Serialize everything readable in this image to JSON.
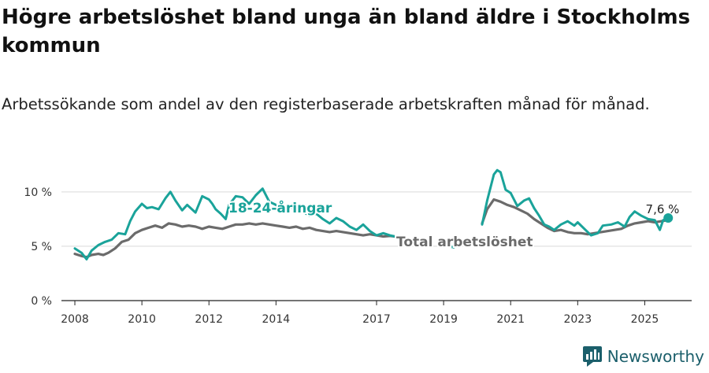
{
  "title": "Högre arbetslöshet bland unga än bland äldre i Stockholms kommun",
  "subtitle": "Arbetssökande som andel av den registerbaserade arbetskraften månad för månad.",
  "brand": {
    "name": "Newsworthy",
    "icon": "newsworthy-logo-icon"
  },
  "colors": {
    "youth": "#1aa39a",
    "total": "#6b6b6b",
    "grid": "#d9d9d9",
    "axis": "#222222"
  },
  "chart_data": {
    "type": "line",
    "xlim": [
      2007.6,
      2026.4
    ],
    "ylim": [
      0,
      11
    ],
    "y_ticks": [
      {
        "value": 0,
        "label": "0 %"
      },
      {
        "value": 5,
        "label": "5 %"
      },
      {
        "value": 10,
        "label": "10 %"
      }
    ],
    "x_ticks": [
      {
        "value": 2008,
        "label": "2008"
      },
      {
        "value": 2010,
        "label": "2010"
      },
      {
        "value": 2012,
        "label": "2012"
      },
      {
        "value": 2014,
        "label": "2014"
      },
      {
        "value": 2017,
        "label": "2017"
      },
      {
        "value": 2019,
        "label": "2019"
      },
      {
        "value": 2021,
        "label": "2021"
      },
      {
        "value": 2023,
        "label": "2023"
      },
      {
        "value": 2025,
        "label": "2025"
      }
    ],
    "grid": true,
    "series": [
      {
        "name": "18-24-åringar",
        "color": "#1aa39a",
        "segments": [
          [
            [
              2008.0,
              4.8
            ],
            [
              2008.2,
              4.4
            ],
            [
              2008.35,
              3.8
            ],
            [
              2008.5,
              4.6
            ],
            [
              2008.7,
              5.1
            ],
            [
              2008.9,
              5.4
            ],
            [
              2009.1,
              5.6
            ],
            [
              2009.3,
              6.2
            ],
            [
              2009.5,
              6.1
            ],
            [
              2009.65,
              7.3
            ],
            [
              2009.8,
              8.2
            ],
            [
              2010.0,
              8.9
            ],
            [
              2010.15,
              8.5
            ],
            [
              2010.3,
              8.6
            ],
            [
              2010.5,
              8.4
            ],
            [
              2010.7,
              9.4
            ],
            [
              2010.85,
              10.0
            ],
            [
              2011.0,
              9.2
            ],
            [
              2011.2,
              8.3
            ],
            [
              2011.35,
              8.8
            ],
            [
              2011.6,
              8.1
            ],
            [
              2011.8,
              9.6
            ],
            [
              2012.0,
              9.3
            ],
            [
              2012.1,
              8.9
            ],
            [
              2012.2,
              8.4
            ],
            [
              2012.35,
              8.0
            ],
            [
              2012.5,
              7.5
            ],
            [
              2012.6,
              8.8
            ],
            [
              2012.8,
              9.6
            ],
            [
              2013.0,
              9.5
            ],
            [
              2013.2,
              8.9
            ],
            [
              2013.4,
              9.7
            ],
            [
              2013.6,
              10.3
            ],
            [
              2013.8,
              9.1
            ],
            [
              2014.0,
              8.8
            ],
            [
              2014.2,
              8.2
            ],
            [
              2014.4,
              8.6
            ],
            [
              2014.7,
              8.4
            ],
            [
              2015.0,
              7.8
            ],
            [
              2015.2,
              8.0
            ],
            [
              2015.4,
              7.5
            ],
            [
              2015.6,
              7.1
            ],
            [
              2015.8,
              7.6
            ],
            [
              2016.0,
              7.3
            ],
            [
              2016.2,
              6.8
            ],
            [
              2016.4,
              6.5
            ],
            [
              2016.6,
              7.0
            ],
            [
              2016.8,
              6.4
            ],
            [
              2017.0,
              6.0
            ],
            [
              2017.2,
              6.2
            ],
            [
              2017.4,
              6.0
            ],
            [
              2017.55,
              5.9
            ]
          ],
          [
            [
              2019.15,
              5.0
            ],
            [
              2019.3,
              4.9
            ]
          ],
          [
            [
              2020.15,
              7.0
            ],
            [
              2020.3,
              9.2
            ],
            [
              2020.5,
              11.6
            ],
            [
              2020.6,
              12.0
            ],
            [
              2020.7,
              11.8
            ],
            [
              2020.85,
              10.2
            ],
            [
              2021.0,
              9.9
            ],
            [
              2021.2,
              8.7
            ],
            [
              2021.4,
              9.2
            ],
            [
              2021.55,
              9.4
            ],
            [
              2021.7,
              8.5
            ],
            [
              2021.85,
              7.8
            ],
            [
              2022.0,
              7.0
            ],
            [
              2022.15,
              6.8
            ],
            [
              2022.3,
              6.5
            ],
            [
              2022.5,
              7.0
            ],
            [
              2022.7,
              7.3
            ],
            [
              2022.9,
              6.9
            ],
            [
              2023.0,
              7.2
            ],
            [
              2023.2,
              6.6
            ],
            [
              2023.4,
              6.0
            ],
            [
              2023.6,
              6.2
            ],
            [
              2023.75,
              6.9
            ],
            [
              2024.0,
              7.0
            ],
            [
              2024.2,
              7.2
            ],
            [
              2024.4,
              6.8
            ],
            [
              2024.55,
              7.7
            ],
            [
              2024.7,
              8.2
            ],
            [
              2024.9,
              7.8
            ],
            [
              2025.1,
              7.5
            ],
            [
              2025.3,
              7.4
            ],
            [
              2025.45,
              6.5
            ],
            [
              2025.55,
              7.4
            ],
            [
              2025.7,
              7.6
            ]
          ]
        ]
      },
      {
        "name": "Total arbetslöshet",
        "color": "#6b6b6b",
        "segments": [
          [
            [
              2008.0,
              4.3
            ],
            [
              2008.2,
              4.1
            ],
            [
              2008.35,
              4.0
            ],
            [
              2008.5,
              4.2
            ],
            [
              2008.7,
              4.3
            ],
            [
              2008.85,
              4.2
            ],
            [
              2009.0,
              4.4
            ],
            [
              2009.2,
              4.8
            ],
            [
              2009.4,
              5.4
            ],
            [
              2009.6,
              5.6
            ],
            [
              2009.8,
              6.2
            ],
            [
              2010.0,
              6.5
            ],
            [
              2010.2,
              6.7
            ],
            [
              2010.4,
              6.9
            ],
            [
              2010.6,
              6.7
            ],
            [
              2010.8,
              7.1
            ],
            [
              2011.0,
              7.0
            ],
            [
              2011.2,
              6.8
            ],
            [
              2011.4,
              6.9
            ],
            [
              2011.6,
              6.8
            ],
            [
              2011.8,
              6.6
            ],
            [
              2012.0,
              6.8
            ],
            [
              2012.2,
              6.7
            ],
            [
              2012.4,
              6.6
            ],
            [
              2012.6,
              6.8
            ],
            [
              2012.8,
              7.0
            ],
            [
              2013.0,
              7.0
            ],
            [
              2013.2,
              7.1
            ],
            [
              2013.4,
              7.0
            ],
            [
              2013.6,
              7.1
            ],
            [
              2013.8,
              7.0
            ],
            [
              2014.0,
              6.9
            ],
            [
              2014.2,
              6.8
            ],
            [
              2014.4,
              6.7
            ],
            [
              2014.6,
              6.8
            ],
            [
              2014.8,
              6.6
            ],
            [
              2015.0,
              6.7
            ],
            [
              2015.2,
              6.5
            ],
            [
              2015.4,
              6.4
            ],
            [
              2015.6,
              6.3
            ],
            [
              2015.8,
              6.4
            ],
            [
              2016.0,
              6.3
            ],
            [
              2016.2,
              6.2
            ],
            [
              2016.4,
              6.1
            ],
            [
              2016.6,
              6.0
            ],
            [
              2016.8,
              6.1
            ],
            [
              2017.0,
              6.0
            ],
            [
              2017.2,
              5.9
            ],
            [
              2017.4,
              5.95
            ],
            [
              2017.55,
              5.9
            ]
          ],
          [
            [
              2020.15,
              7.1
            ],
            [
              2020.3,
              8.4
            ],
            [
              2020.5,
              9.3
            ],
            [
              2020.7,
              9.1
            ],
            [
              2020.9,
              8.8
            ],
            [
              2021.1,
              8.6
            ],
            [
              2021.3,
              8.3
            ],
            [
              2021.5,
              8.0
            ],
            [
              2021.7,
              7.5
            ],
            [
              2021.9,
              7.1
            ],
            [
              2022.1,
              6.7
            ],
            [
              2022.3,
              6.4
            ],
            [
              2022.5,
              6.5
            ],
            [
              2022.7,
              6.3
            ],
            [
              2022.9,
              6.2
            ],
            [
              2023.1,
              6.2
            ],
            [
              2023.3,
              6.1
            ],
            [
              2023.5,
              6.2
            ],
            [
              2023.7,
              6.3
            ],
            [
              2023.9,
              6.4
            ],
            [
              2024.1,
              6.5
            ],
            [
              2024.3,
              6.6
            ],
            [
              2024.5,
              6.9
            ],
            [
              2024.7,
              7.1
            ],
            [
              2024.9,
              7.2
            ],
            [
              2025.1,
              7.3
            ],
            [
              2025.3,
              7.2
            ],
            [
              2025.5,
              7.3
            ],
            [
              2025.7,
              7.4
            ]
          ]
        ]
      }
    ],
    "annotations": [
      {
        "text": "18-24-åringar",
        "series": 0
      },
      {
        "text": "Total arbetslöshet",
        "series": 1
      },
      {
        "text": "7,6 %",
        "series": 0
      }
    ]
  }
}
